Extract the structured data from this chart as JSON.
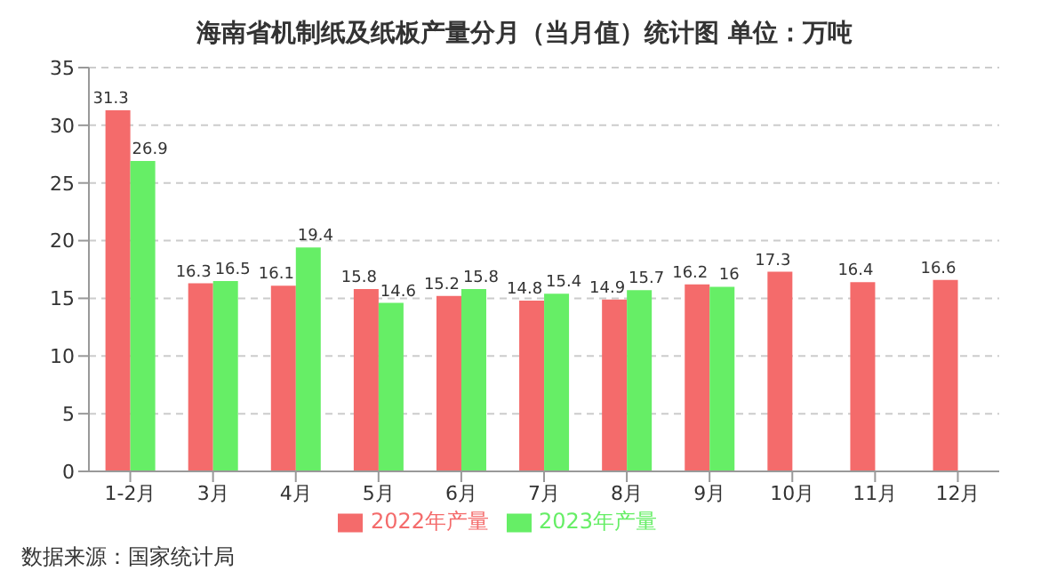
{
  "chart_data": {
    "type": "bar",
    "title": "海南省机制纸及纸板产量分月（当月值）统计图 单位：万吨",
    "categories": [
      "1-2月",
      "3月",
      "4月",
      "5月",
      "6月",
      "7月",
      "8月",
      "9月",
      "10月",
      "11月",
      "12月"
    ],
    "series": [
      {
        "name": "2022年产量",
        "color": "#f46b6b",
        "values": [
          31.3,
          16.3,
          16.1,
          15.8,
          15.2,
          14.8,
          14.9,
          16.2,
          17.3,
          16.4,
          16.6
        ]
      },
      {
        "name": "2023年产量",
        "color": "#66ee66",
        "values": [
          26.9,
          16.5,
          19.4,
          14.6,
          15.8,
          15.4,
          15.7,
          16,
          null,
          null,
          null
        ]
      }
    ],
    "ylim": [
      0,
      35
    ],
    "yticks": [
      0,
      5,
      10,
      15,
      20,
      25,
      30,
      35
    ],
    "grid": "y",
    "legend": "bottom",
    "data_labels": true,
    "annotations": [
      "数据来源：国家统计局"
    ]
  }
}
